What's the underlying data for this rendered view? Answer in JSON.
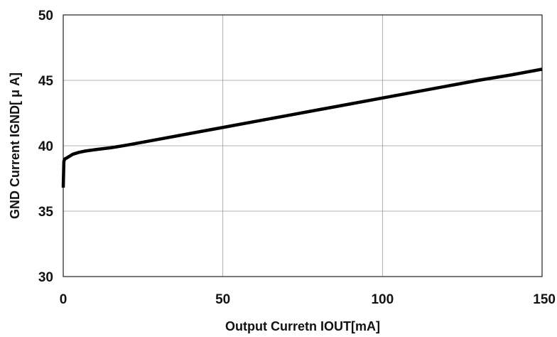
{
  "chart_data": {
    "type": "line",
    "xlabel": "Output Curretn  IOUT[mA]",
    "ylabel": "GND Current  IGND[ μ A]",
    "xlim": [
      0,
      150
    ],
    "ylim": [
      30,
      50
    ],
    "xticks": [
      0,
      50,
      100,
      150
    ],
    "yticks": [
      30,
      35,
      40,
      45,
      50
    ],
    "x_tick_labels": [
      "0",
      "50",
      "100",
      "150"
    ],
    "y_tick_labels": [
      "30",
      "35",
      "40",
      "45",
      "50"
    ],
    "grid": true,
    "line_color": "#000000",
    "series": [
      {
        "x": [
          0,
          0.2,
          0.5,
          1,
          2,
          3,
          5,
          7,
          10,
          15,
          20,
          30,
          40,
          50,
          60,
          70,
          80,
          90,
          100,
          110,
          120,
          130,
          140,
          150
        ],
        "y": [
          36.8,
          38.8,
          39.0,
          39.05,
          39.2,
          39.35,
          39.5,
          39.6,
          39.7,
          39.85,
          40.05,
          40.5,
          40.95,
          41.4,
          41.85,
          42.3,
          42.75,
          43.2,
          43.65,
          44.1,
          44.55,
          45.0,
          45.4,
          45.85
        ]
      }
    ]
  }
}
